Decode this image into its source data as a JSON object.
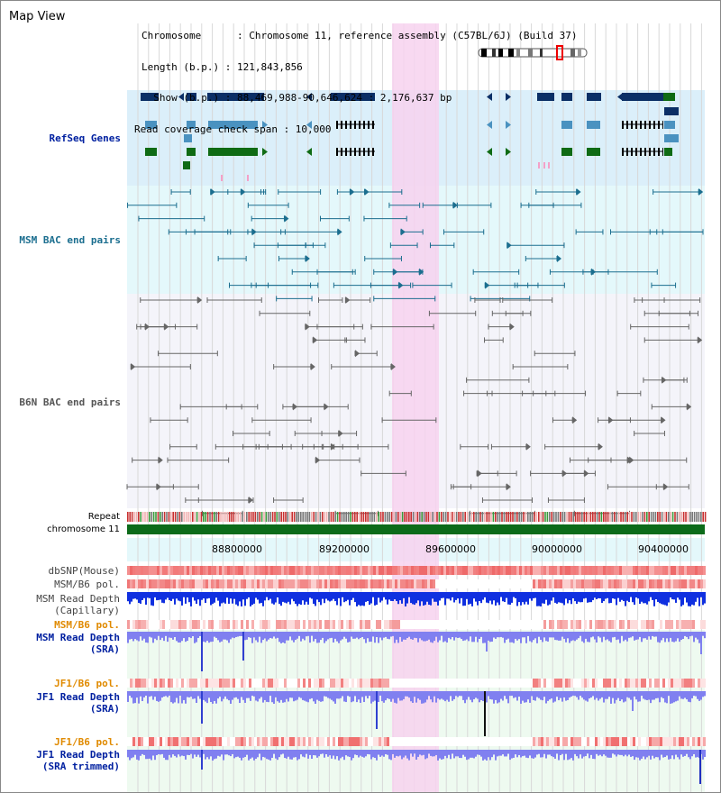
{
  "header": {
    "title": "Map View",
    "info_lines": [
      "Chromosome      : Chromosome 11, reference assembly (C57BL/6J) (Build 37)",
      "Length (b.p.) : 121,843,856",
      "  Show (b.p.) : 88,469,988-90,646,624 : 2,176,637 bp",
      "Read coverage check span : 10,000"
    ]
  },
  "tracks": {
    "refseq": "RefSeq Genes",
    "msm_bac": "MSM BAC end pairs",
    "b6n_bac": "B6N BAC end pairs",
    "repeat": "Repeat",
    "chromosome": "chromosome 11",
    "dbsnp": "dbSNP(Mouse)",
    "msm_b6_pol_1": "MSM/B6 pol.",
    "msm_depth_cap_1": "MSM Read Depth",
    "msm_depth_cap_2": "(Capillary)",
    "msm_b6_pol_2": "MSM/B6 pol.",
    "msm_depth_sra_1": "MSM Read Depth",
    "msm_depth_sra_2": "(SRA)",
    "jf1_b6_pol_1": "JF1/B6 pol.",
    "jf1_depth_sra_1": "JF1 Read Depth",
    "jf1_depth_sra_2": "(SRA)",
    "jf1_b6_pol_2": "JF1/B6 pol.",
    "jf1_depth_trim_1": "JF1 Read Depth",
    "jf1_depth_trim_2": "(SRA trimmed)"
  },
  "axis": {
    "ticks": [
      "88800000",
      "89200000",
      "89600000",
      "90000000",
      "90400000"
    ]
  },
  "colors": {
    "refseq_bg": "#dbeffa",
    "msm_bg": "#e4f8fb",
    "b6n_bg": "#f4f4fa",
    "highlight": "#f7d2ef",
    "dark_blue": "#0b2f66",
    "mid_blue": "#4a92c0",
    "green": "#0f6b14",
    "teal": "#1b6e8f",
    "gray_line": "#666666",
    "label_blue": "#0020a0",
    "label_orange": "#e08a00",
    "label_gray": "#444444"
  }
}
